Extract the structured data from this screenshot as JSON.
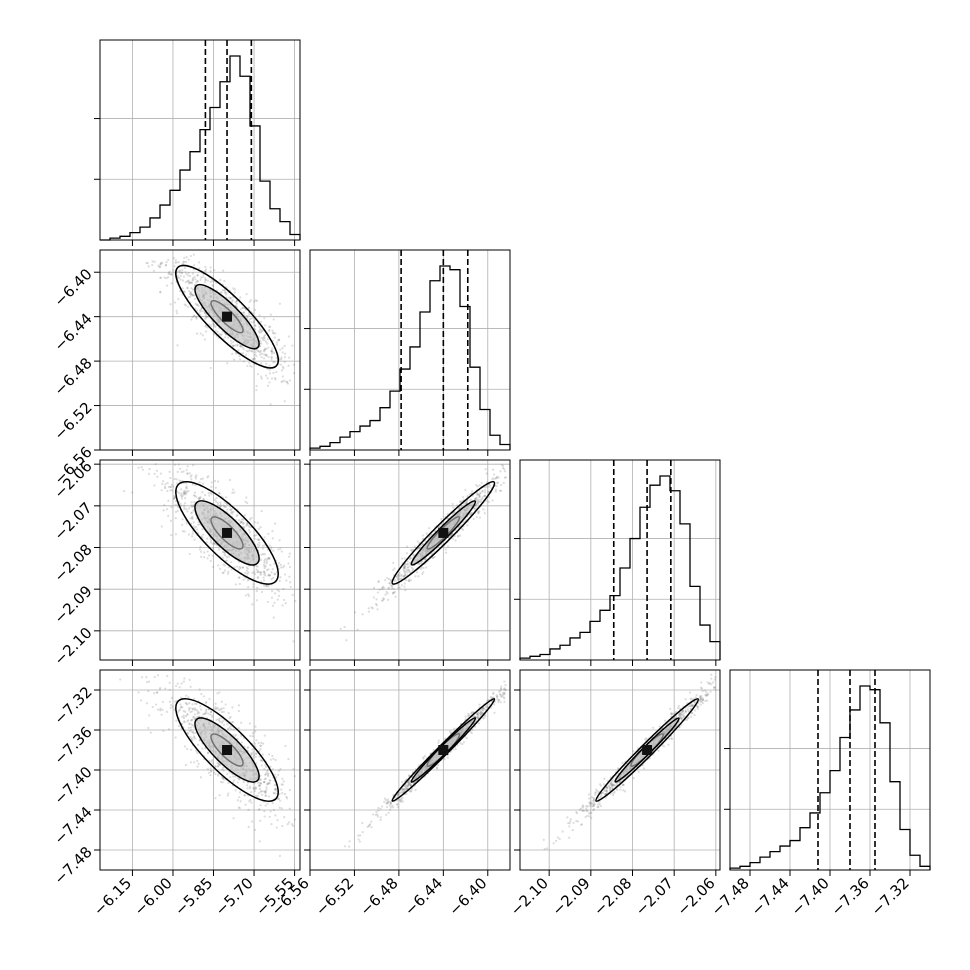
{
  "chart_data": {
    "type": "corner",
    "title": "",
    "parameters": [
      {
        "range": [
          -6.27,
          -5.53
        ],
        "ticks": [
          -6.15,
          -6.0,
          -5.85,
          -5.7,
          -5.55
        ],
        "tick_labels": [
          "−6.15",
          "−6.00",
          "−5.85",
          "−5.70",
          "−5.55"
        ],
        "median": -5.8,
        "q16": -5.88,
        "q84": -5.71
      },
      {
        "range": [
          -6.56,
          -6.38
        ],
        "ticks": [
          -6.56,
          -6.52,
          -6.48,
          -6.44,
          -6.4
        ],
        "tick_labels": [
          "−6.56",
          "−6.52",
          "−6.48",
          "−6.44",
          "−6.40"
        ],
        "median": -6.44,
        "q16": -6.478,
        "q84": -6.418
      },
      {
        "range": [
          -2.107,
          -2.059
        ],
        "ticks": [
          -2.1,
          -2.09,
          -2.08,
          -2.07,
          -2.06
        ],
        "tick_labels": [
          "−2.10",
          "−2.09",
          "−2.08",
          "−2.07",
          "−2.06"
        ],
        "median": -2.0765,
        "q16": -2.0845,
        "q84": -2.0708
      },
      {
        "range": [
          -7.5,
          -7.3
        ],
        "ticks": [
          -7.48,
          -7.44,
          -7.4,
          -7.36,
          -7.32
        ],
        "tick_labels": [
          "−7.48",
          "−7.44",
          "−7.40",
          "−7.36",
          "−7.32"
        ],
        "median": -7.38,
        "q16": -7.412,
        "q84": -7.355
      }
    ],
    "histograms": [
      [
        0,
        0.01,
        0.02,
        0.04,
        0.07,
        0.12,
        0.19,
        0.27,
        0.38,
        0.48,
        0.6,
        0.72,
        0.86,
        1.0,
        0.89,
        0.62,
        0.32,
        0.17,
        0.1,
        0.03
      ],
      [
        0.01,
        0.02,
        0.04,
        0.07,
        0.1,
        0.13,
        0.16,
        0.23,
        0.32,
        0.44,
        0.56,
        0.75,
        0.92,
        1.0,
        0.98,
        0.78,
        0.45,
        0.22,
        0.08,
        0.03
      ],
      [
        0.01,
        0.02,
        0.03,
        0.06,
        0.08,
        0.12,
        0.15,
        0.21,
        0.27,
        0.35,
        0.5,
        0.66,
        0.83,
        0.95,
        1.0,
        0.92,
        0.74,
        0.4,
        0.19,
        0.1
      ],
      [
        0.01,
        0.02,
        0.04,
        0.07,
        0.1,
        0.13,
        0.16,
        0.23,
        0.31,
        0.42,
        0.54,
        0.72,
        0.87,
        1.0,
        0.98,
        0.8,
        0.48,
        0.22,
        0.08,
        0.02
      ]
    ],
    "correlations": {
      "1_0": -0.85,
      "2_0": -0.8,
      "2_1": 0.97,
      "3_0": -0.82,
      "3_1": 0.99,
      "3_2": 0.985
    },
    "grid": true
  }
}
